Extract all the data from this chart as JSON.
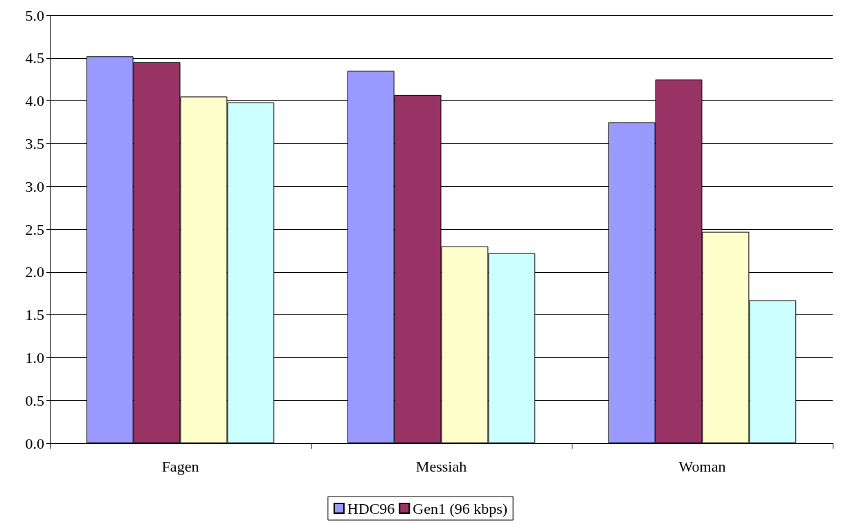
{
  "chart_data": {
    "type": "bar",
    "categories": [
      "Fagen",
      "Messiah",
      "Woman"
    ],
    "series": [
      {
        "name": "HDC96",
        "color": "#9999ff",
        "values": [
          4.52,
          4.35,
          3.75
        ]
      },
      {
        "name": "Gen1 (96 kbps)",
        "color": "#993366",
        "values": [
          4.45,
          4.07,
          4.25
        ]
      },
      {
        "color": "#ffffcc",
        "values": [
          4.05,
          2.3,
          2.47
        ]
      },
      {
        "color": "#ccffff",
        "values": [
          3.98,
          2.22,
          1.67
        ]
      }
    ],
    "ylim": [
      0,
      5
    ],
    "yticks": [
      {
        "value": 0,
        "label": "0.0"
      },
      0.5,
      {
        "value": 1,
        "label": "1.0"
      },
      1.5,
      {
        "value": 2,
        "label": "2.0"
      },
      2.5,
      {
        "value": 3,
        "label": "3.0"
      },
      3.5,
      {
        "value": 4,
        "label": "4.0"
      },
      4.5,
      {
        "value": 5,
        "label": "5.0"
      }
    ],
    "grid": "y",
    "legend": "bottom"
  }
}
